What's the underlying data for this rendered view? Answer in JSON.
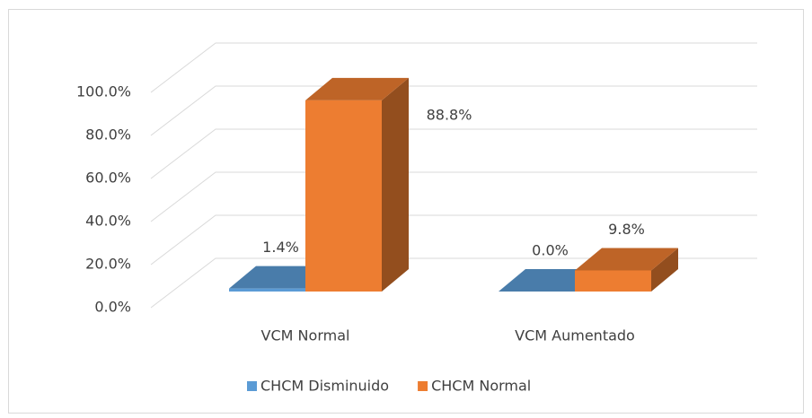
{
  "chart_data": {
    "type": "bar3d",
    "categories": [
      "VCM Normal",
      "VCM Aumentado"
    ],
    "series": [
      {
        "name": "CHCM Disminuido",
        "color": "#5b9bd5",
        "values": [
          1.4,
          0.0
        ],
        "value_labels": [
          "1.4%",
          "0.0%"
        ]
      },
      {
        "name": "CHCM Normal",
        "color": "#ed7d31",
        "values": [
          88.8,
          9.8
        ],
        "value_labels": [
          "88.8%",
          "9.8%"
        ]
      }
    ],
    "ylim": [
      0,
      100
    ],
    "yticks": [
      {
        "value": 0,
        "label": "0.0%"
      },
      {
        "value": 20,
        "label": "20.0%"
      },
      {
        "value": 40,
        "label": "40.0%"
      },
      {
        "value": 60,
        "label": "60.0%"
      },
      {
        "value": 80,
        "label": "80.0%"
      },
      {
        "value": 100,
        "label": "100.0%"
      }
    ],
    "grid": true,
    "legend": "bottom"
  }
}
